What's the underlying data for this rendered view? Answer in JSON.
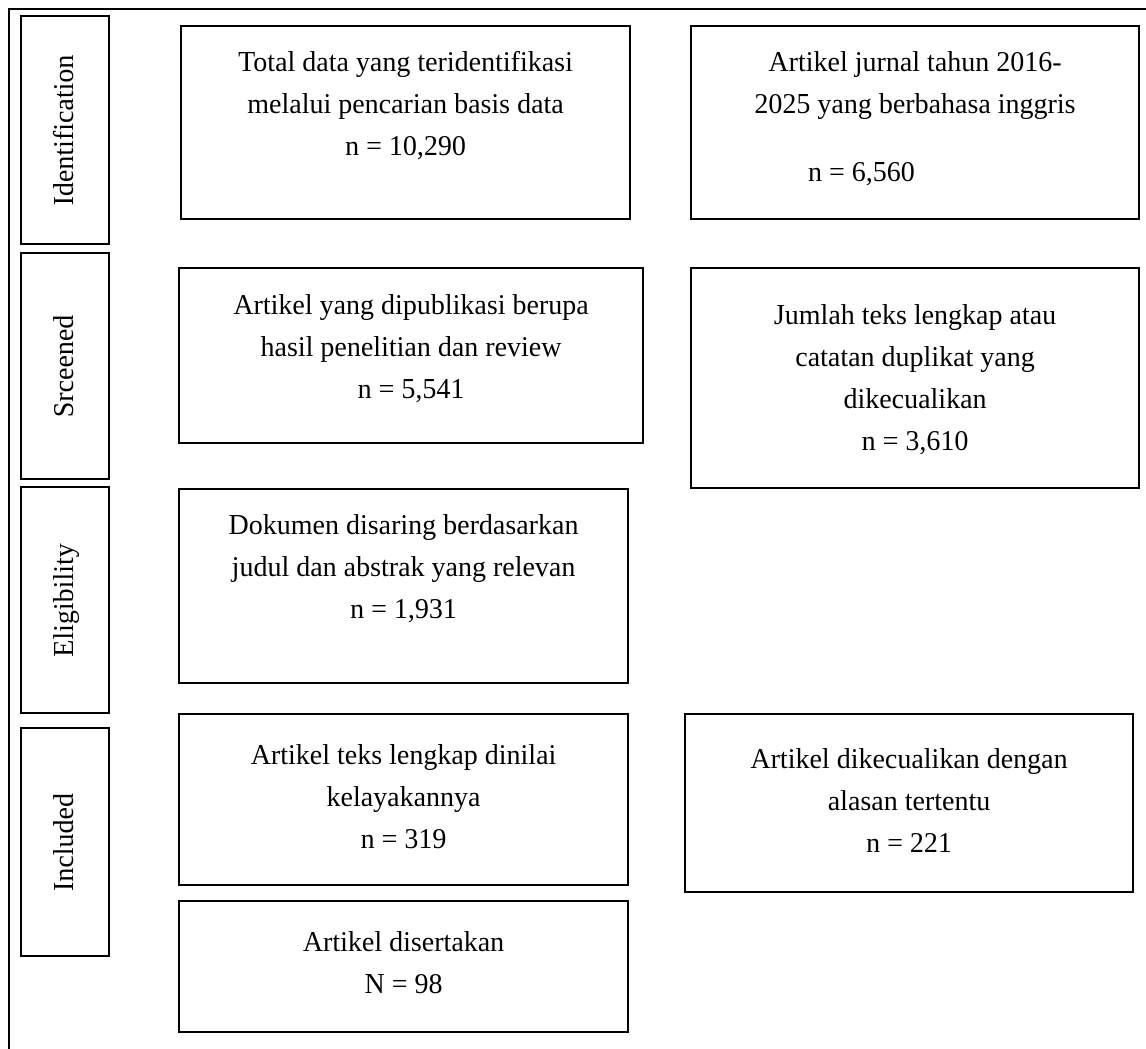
{
  "stages": {
    "identification": "Identification",
    "screened": "Srceened",
    "eligibility": "Eligibility",
    "included": "Included"
  },
  "boxes": {
    "total_identified": {
      "line1": "Total data yang teridentifikasi",
      "line2": "melalui pencarian basis data",
      "count": "n = 10,290"
    },
    "english_articles": {
      "line1": "Artikel jurnal tahun  2016-",
      "line2": "2025 yang berbahasa inggris",
      "count": "n = 6,560"
    },
    "research_review": {
      "line1": "Artikel yang dipublikasi berupa",
      "line2": "hasil penelitian dan review",
      "count": "n = 5,541"
    },
    "duplicates_excluded": {
      "line1": "Jumlah teks lengkap atau",
      "line2": "catatan duplikat yang",
      "line3": "dikecualikan",
      "count": "n = 3,610"
    },
    "title_abstract": {
      "line1": "Dokumen disaring berdasarkan",
      "line2": "judul dan abstrak yang relevan",
      "count": "n = 1,931"
    },
    "full_text_assessed": {
      "line1": "Artikel teks lengkap dinilai",
      "line2": "kelayakannya",
      "count": "n = 319"
    },
    "excluded_reasons": {
      "line1": "Artikel dikecualikan dengan",
      "line2": "alasan tertentu",
      "count": "n = 221"
    },
    "included_articles": {
      "line1": "Artikel disertakan",
      "count": "N = 98"
    }
  }
}
